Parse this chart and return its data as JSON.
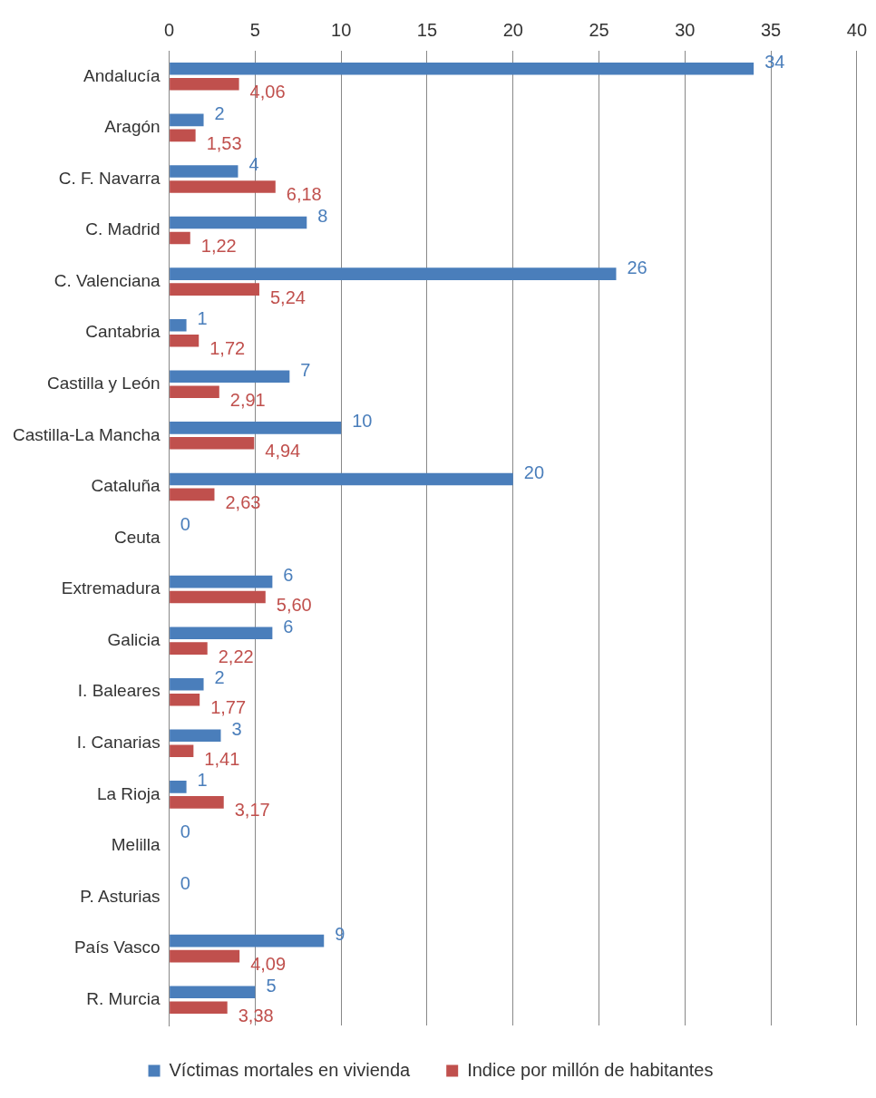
{
  "chart_data": {
    "type": "bar",
    "orientation": "horizontal",
    "categories": [
      "Andalucía",
      "Aragón",
      "C. F. Navarra",
      "C. Madrid",
      "C. Valenciana",
      "Cantabria",
      "Castilla y León",
      "Castilla-La Mancha",
      "Cataluña",
      "Ceuta",
      "Extremadura",
      "Galicia",
      "I. Baleares",
      "I. Canarias",
      "La Rioja",
      "Melilla",
      "P. Asturias",
      "País Vasco",
      "R. Murcia"
    ],
    "series": [
      {
        "name": "Víctimas mortales en vivienda",
        "color": "#4a7ebb",
        "values": [
          34,
          2,
          4,
          8,
          26,
          1,
          7,
          10,
          20,
          0,
          6,
          6,
          2,
          3,
          1,
          0,
          0,
          9,
          5
        ],
        "value_labels": [
          "34",
          "2",
          "4",
          "8",
          "26",
          "1",
          "7",
          "10",
          "20",
          "0",
          "6",
          "6",
          "2",
          "3",
          "1",
          "0",
          "0",
          "9",
          "5"
        ]
      },
      {
        "name": "Indice por millón de habitantes",
        "color": "#c0504d",
        "values": [
          4.06,
          1.53,
          6.18,
          1.22,
          5.24,
          1.72,
          2.91,
          4.94,
          2.63,
          null,
          5.6,
          2.22,
          1.77,
          1.41,
          3.17,
          null,
          null,
          4.09,
          3.38
        ],
        "value_labels": [
          "4,06",
          "1,53",
          "6,18",
          "1,22",
          "5,24",
          "1,72",
          "2,91",
          "4,94",
          "2,63",
          null,
          "5,60",
          "2,22",
          "1,77",
          "1,41",
          "3,17",
          null,
          null,
          "4,09",
          "3,38"
        ]
      }
    ],
    "xlim": [
      0,
      40
    ],
    "xticks": [
      0,
      5,
      10,
      15,
      20,
      25,
      30,
      35,
      40
    ],
    "grid": "x",
    "legend": "bottom"
  }
}
